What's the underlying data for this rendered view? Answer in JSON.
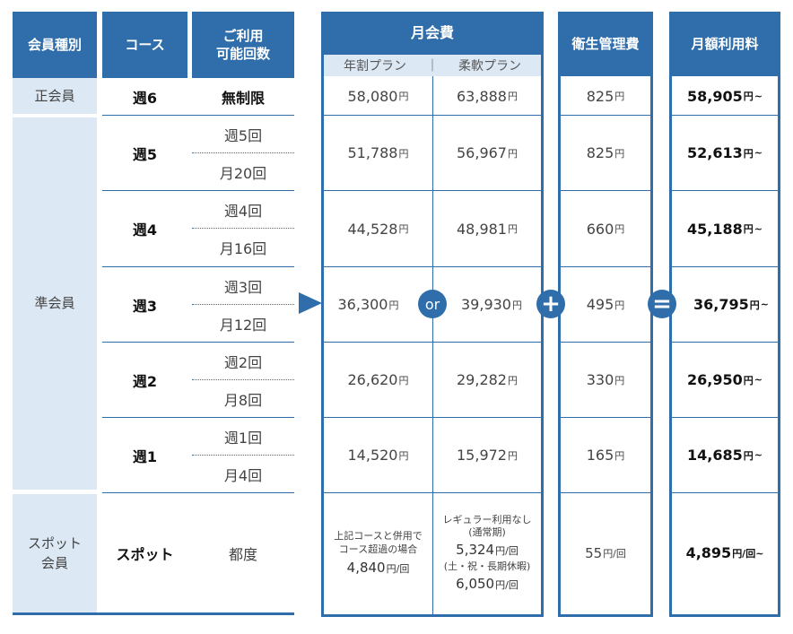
{
  "headers": {
    "member_type": "会員種別",
    "course": "コース",
    "times_line1": "ご利用",
    "times_line2": "可能回数",
    "monthly_fee": "月会費",
    "plan_annual": "年割プラン",
    "plan_separator": "｜",
    "plan_flexible": "柔軟プラン",
    "hygiene_fee": "衛生管理費",
    "monthly_total": "月額利用料"
  },
  "member_types": {
    "regular": "正会員",
    "associate": "準会員",
    "spot_line1": "スポット",
    "spot_line2": "会員"
  },
  "rows": [
    {
      "course": "週6",
      "times": [
        "無制限"
      ],
      "annual": "58,080",
      "flexible": "63,888",
      "hygiene": "825",
      "total": "58,905"
    },
    {
      "course": "週5",
      "times": [
        "週5回",
        "月20回"
      ],
      "annual": "51,788",
      "flexible": "56,967",
      "hygiene": "825",
      "total": "52,613"
    },
    {
      "course": "週4",
      "times": [
        "週4回",
        "月16回"
      ],
      "annual": "44,528",
      "flexible": "48,981",
      "hygiene": "660",
      "total": "45,188"
    },
    {
      "course": "週3",
      "times": [
        "週3回",
        "月12回"
      ],
      "annual": "36,300",
      "flexible": "39,930",
      "hygiene": "495",
      "total": "36,795"
    },
    {
      "course": "週2",
      "times": [
        "週2回",
        "月8回"
      ],
      "annual": "26,620",
      "flexible": "29,282",
      "hygiene": "330",
      "total": "26,950"
    },
    {
      "course": "週1",
      "times": [
        "週1回",
        "月4回"
      ],
      "annual": "14,520",
      "flexible": "15,972",
      "hygiene": "165",
      "total": "14,685"
    }
  ],
  "spot": {
    "course": "スポット",
    "times": "都度",
    "annual_note1": "上記コースと併用で",
    "annual_note2": "コース超過の場合",
    "annual_price": "4,840",
    "flex_note1": "レギュラー利用なし",
    "flex_note2": "(通常期)",
    "flex_price1": "5,324",
    "flex_note3": "(土・祝・長期休暇)",
    "flex_price2": "6,050",
    "hygiene": "55",
    "total": "4,895"
  },
  "units": {
    "yen": "円",
    "per_time": "円/回",
    "tilde": "~",
    "per_time_tilde": "円/回~"
  },
  "symbols": {
    "or": "or",
    "plus": "+",
    "equals": "="
  },
  "colors": {
    "brand": "#2f6eab",
    "light": "#dce8f4"
  }
}
